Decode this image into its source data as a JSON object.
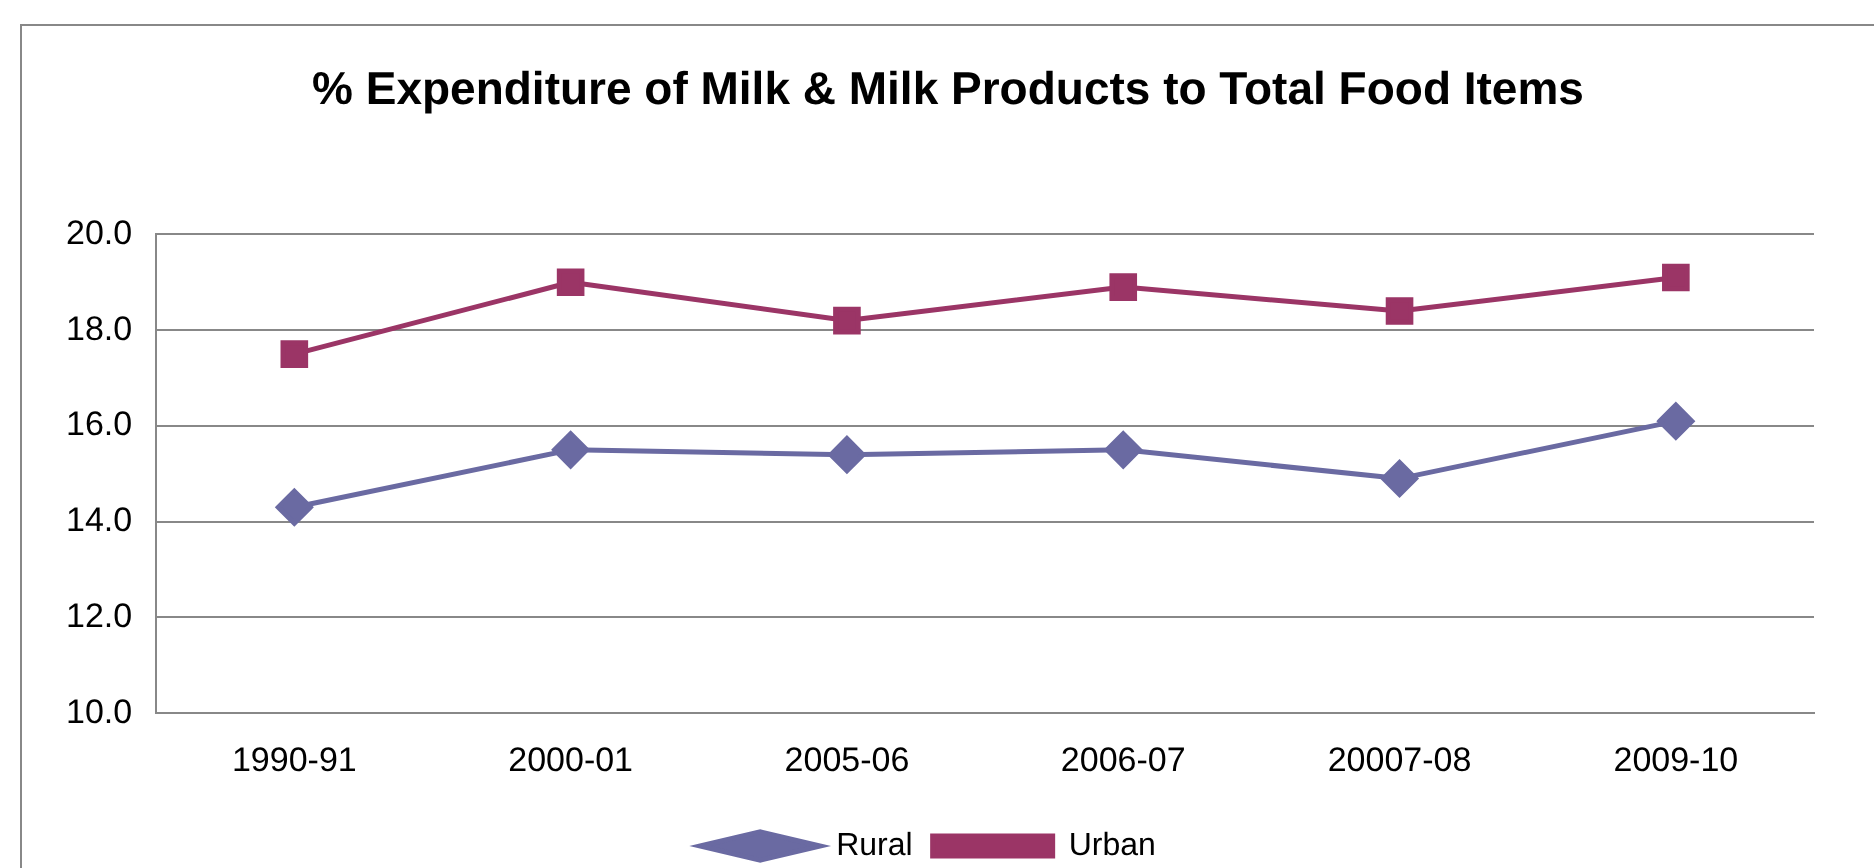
{
  "chart_data": {
    "type": "line",
    "title": "% Expenditure of Milk & Milk Products to Total Food Items",
    "categories": [
      "1990-91",
      "2000-01",
      "2005-06",
      "2006-07",
      "20007-08",
      "2009-10"
    ],
    "series": [
      {
        "name": "Rural",
        "color": "#6a6aa2",
        "marker": "diamond",
        "values": [
          14.3,
          15.5,
          15.4,
          15.5,
          14.9,
          16.1
        ]
      },
      {
        "name": "Urban",
        "color": "#9b3566",
        "marker": "square",
        "values": [
          17.5,
          19.0,
          18.2,
          18.9,
          18.4,
          19.1
        ]
      }
    ],
    "ylim": [
      10,
      20
    ],
    "yticks": [
      {
        "value": 10,
        "label": "10.0"
      },
      {
        "value": 12,
        "label": "12.0"
      },
      {
        "value": 14,
        "label": "14.0"
      },
      {
        "value": 16,
        "label": "16.0"
      },
      {
        "value": 18,
        "label": "18.0"
      },
      {
        "value": 20,
        "label": "20.0"
      }
    ],
    "grid": "y",
    "legend": "bottom"
  }
}
